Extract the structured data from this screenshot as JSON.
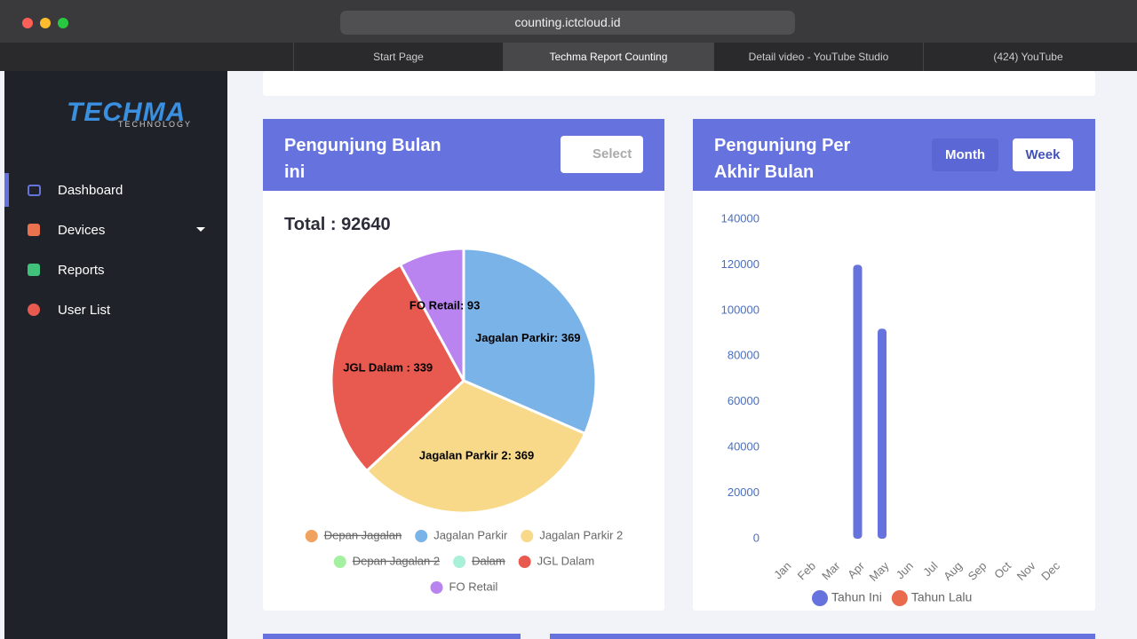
{
  "browser": {
    "url": "counting.ictcloud.id",
    "tabs": [
      "Start Page",
      "Techma Report Counting",
      "Detail video - YouTube Studio",
      "(424) YouTube"
    ]
  },
  "sidebar": {
    "logo": "TECHMA",
    "logo_sub": "TECHNOLOGY",
    "menu": [
      "Dashboard",
      "Devices",
      "Reports",
      "User List"
    ]
  },
  "cards": [
    {
      "title": "Pengunjung Bulan ini",
      "select_placeholder": "Select",
      "total": "Total : 92640",
      "chart_data": {
        "type": "pie",
        "categories": [
          "Depan Jagalan",
          "Jagalan Parkir",
          "Jagalan Parkir 2",
          "Depan Jagalan 2",
          "Dalam",
          "JGL Dalam",
          "FO Retail"
        ],
        "values": [
          null,
          369,
          369,
          null,
          null,
          339,
          93
        ],
        "value_labels": [
          null,
          "Jagalan Parkir: 369",
          "Jagalan Parkir 2: 369",
          null,
          null,
          "JGL Dalam : 339",
          "FO Retail: 93"
        ],
        "colors": [
          "#f0a35e",
          "#7ab3e8",
          "#f8d98a",
          "#a3f0a0",
          "#a8f0d8",
          "#e8594f",
          "#b983f0"
        ],
        "hidden": [
          true,
          false,
          false,
          true,
          true,
          false,
          false
        ]
      }
    },
    {
      "title": "Pengunjung Per Akhir Bulan",
      "buttons": [
        "Month",
        "Week"
      ],
      "chart_data": {
        "type": "bar",
        "categories": [
          "Jan",
          "Feb",
          "Mar",
          "Apr",
          "May",
          "Jun",
          "Jul",
          "Aug",
          "Sep",
          "Oct",
          "Nov",
          "Dec"
        ],
        "series": [
          {
            "name": "Tahun Ini",
            "color": "#6672de",
            "values": [
              null,
              null,
              null,
              120000,
              92000,
              null,
              null,
              null,
              null,
              null,
              null,
              null
            ]
          },
          {
            "name": "Tahun Lalu",
            "color": "#ea6a4e",
            "values": [
              null,
              null,
              null,
              null,
              null,
              null,
              null,
              null,
              null,
              null,
              null,
              null
            ]
          }
        ],
        "ylim": [
          0,
          140000
        ],
        "yticks": [
          0,
          20000,
          40000,
          60000,
          80000,
          100000,
          120000,
          140000
        ]
      }
    }
  ]
}
